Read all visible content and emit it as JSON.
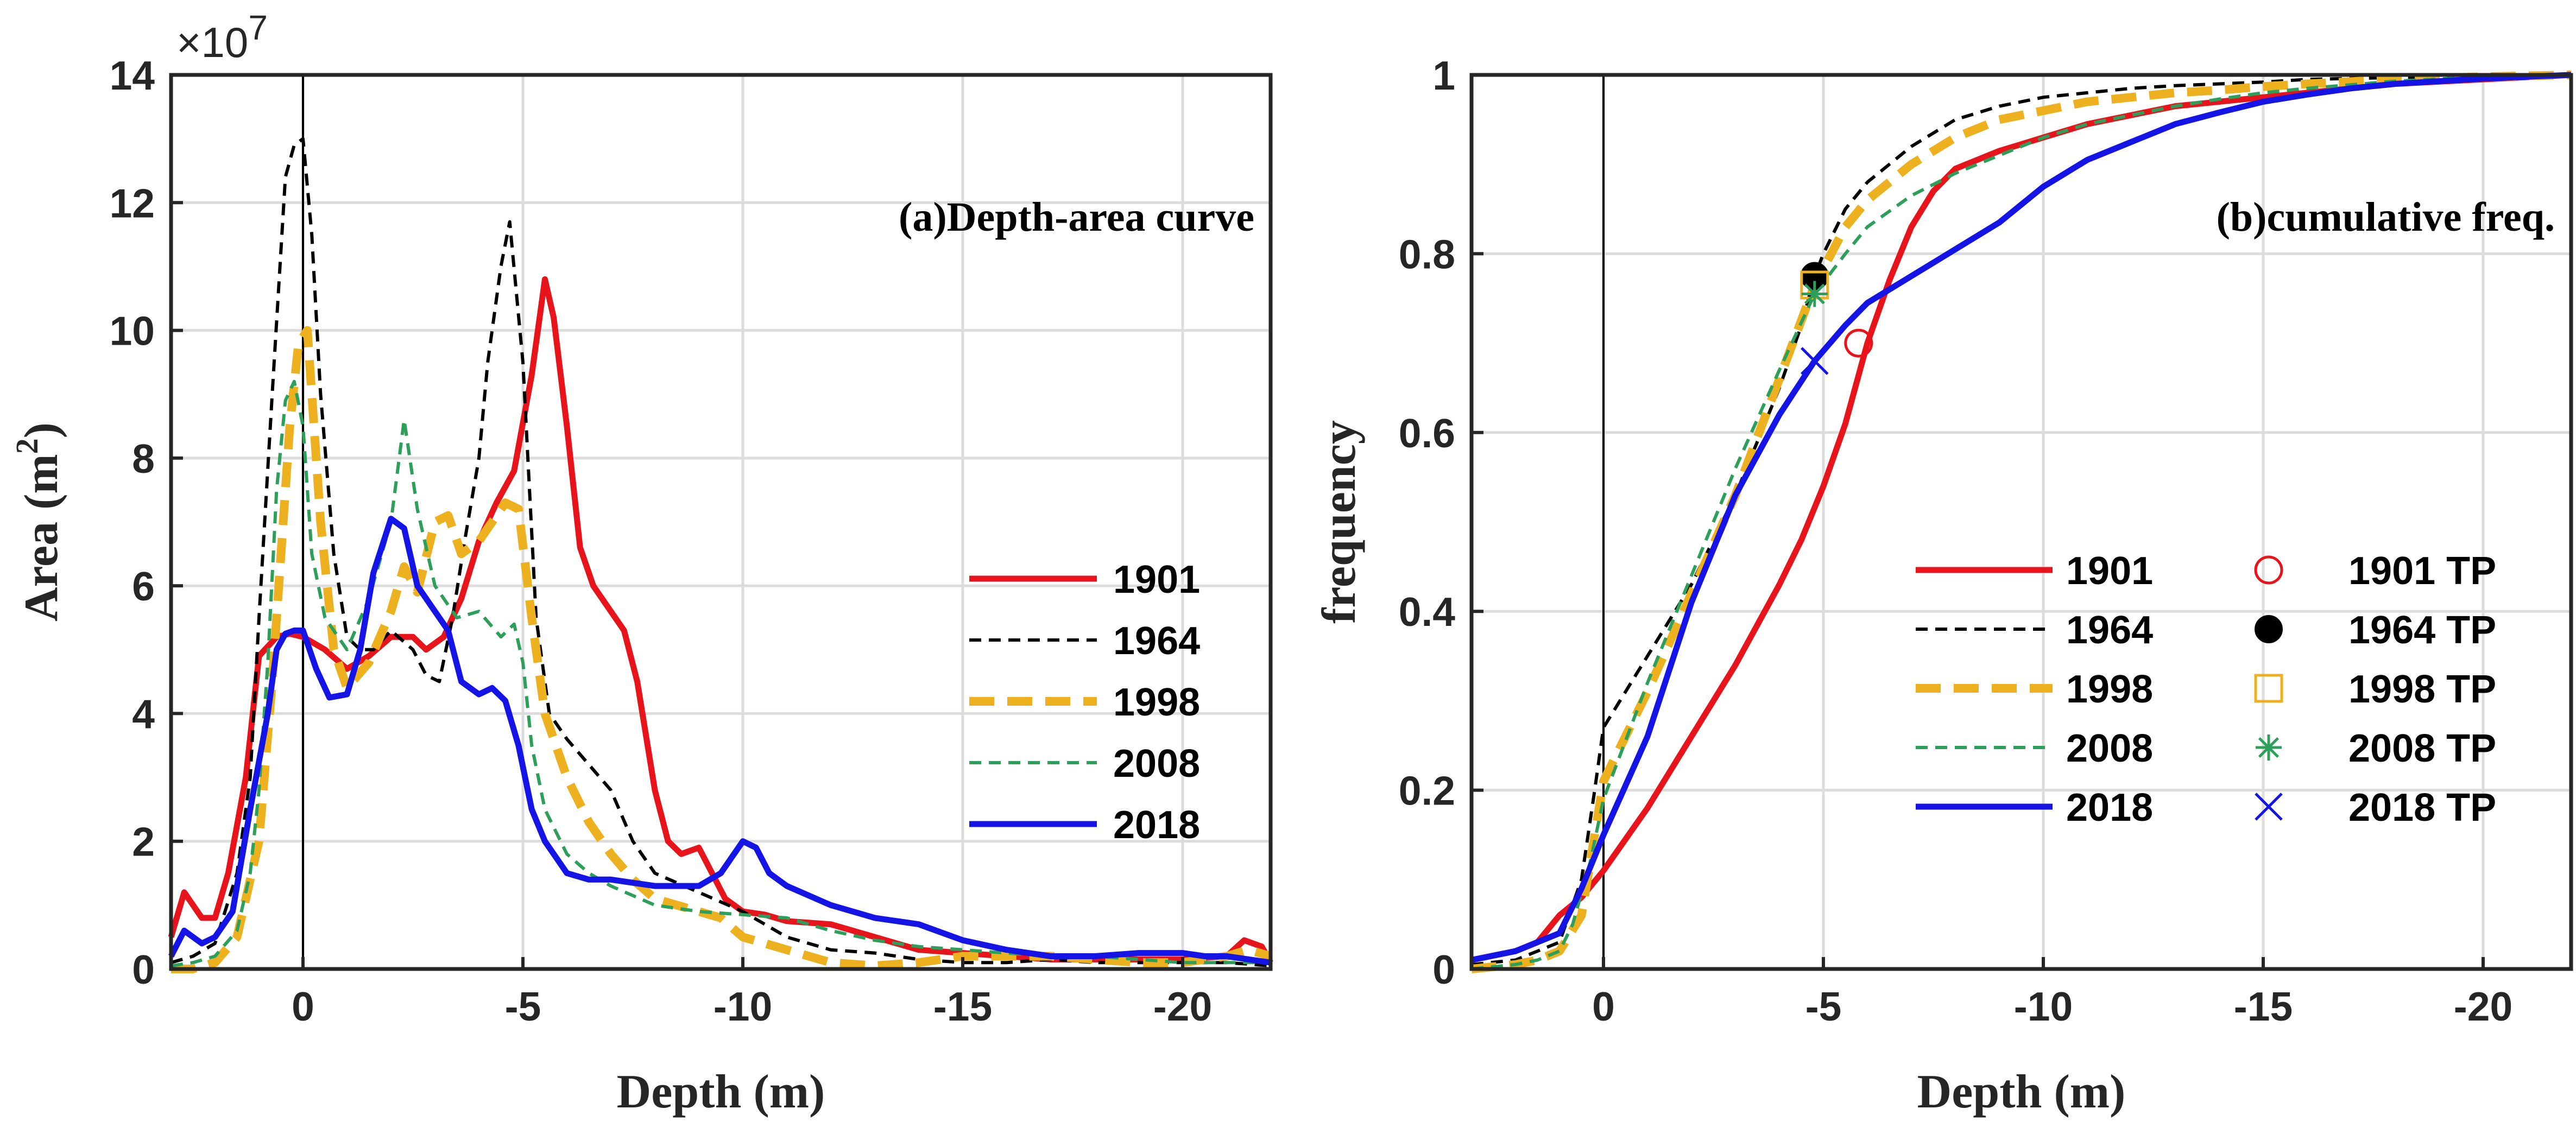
{
  "chart_data": [
    {
      "type": "line",
      "title": "(a)Depth-area curve",
      "xlabel": "Depth (m)",
      "ylabel": "Area (m",
      "ylabel_sup": "2",
      "ylabel_close": ")",
      "exponent_label": "×10",
      "exponent_power": "7",
      "xlim": [
        3,
        -22
      ],
      "ylim": [
        0,
        14
      ],
      "x_ticks": [
        0,
        -5,
        -10,
        -15,
        -20
      ],
      "x_tick_labels": [
        "0",
        "-5",
        "-10",
        "-15",
        "-20"
      ],
      "y_ticks": [
        0,
        2,
        4,
        6,
        8,
        10,
        12,
        14
      ],
      "y_tick_labels": [
        "0",
        "2",
        "4",
        "6",
        "8",
        "10",
        "12",
        "14"
      ],
      "grid": true,
      "legend_position": "center-right",
      "series": [
        {
          "name": "1901",
          "color": "#e8141c",
          "style": "solid",
          "x": [
            3,
            2.7,
            2.3,
            2,
            1.7,
            1.3,
            1,
            0.6,
            0.3,
            0,
            -0.5,
            -1,
            -1.5,
            -2,
            -2.5,
            -2.8,
            -3.2,
            -3.6,
            -4,
            -4.4,
            -4.8,
            -5.2,
            -5.5,
            -5.7,
            -6,
            -6.3,
            -6.6,
            -7,
            -7.3,
            -7.6,
            -8,
            -8.3,
            -8.6,
            -9,
            -9.3,
            -9.6,
            -10,
            -10.5,
            -11,
            -12,
            -13,
            -14,
            -15,
            -16,
            -17,
            -18,
            -19,
            -20,
            -21,
            -21.4,
            -21.8,
            -22
          ],
          "y": [
            0.5,
            1.2,
            0.8,
            0.8,
            1.5,
            3,
            4.9,
            5.2,
            5.25,
            5.2,
            5.0,
            4.7,
            4.9,
            5.2,
            5.2,
            5.0,
            5.2,
            5.8,
            6.7,
            7.3,
            7.8,
            9.3,
            10.8,
            10.2,
            8.5,
            6.6,
            6.0,
            5.6,
            5.3,
            4.5,
            2.8,
            2.0,
            1.8,
            1.9,
            1.5,
            1.1,
            0.9,
            0.85,
            0.75,
            0.7,
            0.5,
            0.3,
            0.25,
            0.2,
            0.15,
            0.15,
            0.15,
            0.15,
            0.2,
            0.45,
            0.35,
            0.1
          ]
        },
        {
          "name": "1964",
          "color": "#000000",
          "style": "dashed",
          "x": [
            3,
            2.5,
            2,
            1.5,
            1.2,
            1,
            0.7,
            0.4,
            0.2,
            0,
            -0.2,
            -0.4,
            -0.7,
            -1,
            -1.3,
            -1.6,
            -2,
            -2.5,
            -2.8,
            -3.1,
            -3.4,
            -3.7,
            -4,
            -4.2,
            -4.5,
            -4.7,
            -5,
            -5.3,
            -5.6,
            -6,
            -6.5,
            -7,
            -7.5,
            -8,
            -9,
            -10,
            -11,
            -12,
            -13,
            -14,
            -15,
            -16,
            -17,
            -18,
            -19,
            -20,
            -21,
            -22
          ],
          "y": [
            0.1,
            0.2,
            0.4,
            1.5,
            3,
            5.5,
            9,
            12.4,
            12.9,
            13.0,
            11.5,
            9,
            6.5,
            5.2,
            5.0,
            5.0,
            5.3,
            5.0,
            4.6,
            4.5,
            5.5,
            6.8,
            8.0,
            9.5,
            11.0,
            11.7,
            9.5,
            5.5,
            4.0,
            3.6,
            3.2,
            2.8,
            2.0,
            1.5,
            1.2,
            0.9,
            0.5,
            0.3,
            0.25,
            0.15,
            0.1,
            0.1,
            0.15,
            0.1,
            0.1,
            0.1,
            0.1,
            0.05
          ]
        },
        {
          "name": "1998",
          "color": "#edb120",
          "style": "dashed-thick",
          "x": [
            3,
            2.5,
            2,
            1.5,
            1,
            0.7,
            0.5,
            0.3,
            0.1,
            -0.1,
            -0.4,
            -0.7,
            -1,
            -1.5,
            -2,
            -2.3,
            -2.6,
            -3,
            -3.3,
            -3.6,
            -4,
            -4.3,
            -4.6,
            -4.9,
            -5.2,
            -5.5,
            -6,
            -6.5,
            -7,
            -7.5,
            -8,
            -8.5,
            -9,
            -9.5,
            -10,
            -10.5,
            -11,
            -12,
            -13,
            -14,
            -15,
            -16,
            -17,
            -18,
            -19,
            -20,
            -21,
            -21.5,
            -22
          ],
          "y": [
            0,
            0,
            0.1,
            0.5,
            2,
            4.5,
            6.5,
            8.5,
            9.8,
            10.0,
            7,
            5,
            4.4,
            4.8,
            5.6,
            6.3,
            5.9,
            7.0,
            7.1,
            6.5,
            6.7,
            7.0,
            7.3,
            7.2,
            5.5,
            4.0,
            3.0,
            2.3,
            1.8,
            1.4,
            1.1,
            1.0,
            0.9,
            0.8,
            0.5,
            0.4,
            0.3,
            0.1,
            0.05,
            0.1,
            0.2,
            0.2,
            0.2,
            0.15,
            0.1,
            0.1,
            0.2,
            0.3,
            0.2
          ]
        },
        {
          "name": "2008",
          "color": "#2ca05a",
          "style": "dashed",
          "x": [
            3,
            2.5,
            2,
            1.5,
            1.2,
            1,
            0.8,
            0.6,
            0.4,
            0.2,
            0,
            -0.2,
            -0.5,
            -1,
            -1.5,
            -2,
            -2.3,
            -2.6,
            -3,
            -3.5,
            -4,
            -4.5,
            -4.8,
            -5,
            -5.2,
            -5.5,
            -6,
            -6.5,
            -7,
            -8,
            -9,
            -10,
            -11,
            -12,
            -13,
            -14,
            -15,
            -16,
            -17,
            -18,
            -19,
            -20,
            -21,
            -22
          ],
          "y": [
            0.05,
            0.1,
            0.2,
            0.6,
            1.5,
            2.8,
            4.8,
            7.5,
            8.9,
            9.2,
            8.5,
            6.5,
            5.5,
            5.0,
            5.8,
            7.0,
            8.6,
            7.2,
            6.0,
            5.5,
            5.6,
            5.2,
            5.4,
            4.8,
            3.5,
            2.5,
            1.8,
            1.5,
            1.3,
            1.0,
            0.9,
            0.85,
            0.8,
            0.6,
            0.45,
            0.35,
            0.3,
            0.25,
            0.2,
            0.2,
            0.15,
            0.1,
            0.1,
            0.1
          ]
        },
        {
          "name": "2018",
          "color": "#1414e6",
          "style": "solid",
          "x": [
            3,
            2.7,
            2.3,
            2,
            1.6,
            1.2,
            0.8,
            0.6,
            0.4,
            0.2,
            0,
            -0.3,
            -0.6,
            -1,
            -1.3,
            -1.6,
            -2,
            -2.3,
            -2.6,
            -3,
            -3.3,
            -3.6,
            -4,
            -4.3,
            -4.6,
            -4.9,
            -5.2,
            -5.5,
            -6,
            -6.5,
            -7,
            -8,
            -9,
            -9.5,
            -10,
            -10.3,
            -10.6,
            -11,
            -12,
            -13,
            -14,
            -15,
            -16,
            -17,
            -18,
            -19,
            -20,
            -20.5,
            -21,
            -22
          ],
          "y": [
            0.2,
            0.6,
            0.4,
            0.5,
            0.9,
            2.5,
            4.0,
            5.0,
            5.25,
            5.3,
            5.3,
            4.7,
            4.25,
            4.3,
            5.0,
            6.2,
            7.05,
            6.9,
            6.0,
            5.6,
            5.3,
            4.5,
            4.3,
            4.4,
            4.2,
            3.5,
            2.5,
            2.0,
            1.5,
            1.4,
            1.4,
            1.3,
            1.3,
            1.5,
            2.0,
            1.9,
            1.5,
            1.3,
            1.0,
            0.8,
            0.7,
            0.45,
            0.3,
            0.2,
            0.2,
            0.25,
            0.25,
            0.2,
            0.2,
            0.1
          ]
        }
      ]
    },
    {
      "type": "line",
      "title": "(b)cumulative freq.",
      "xlabel": "Depth (m)",
      "ylabel": "frequency",
      "xlim": [
        3,
        -22
      ],
      "ylim": [
        0,
        1
      ],
      "x_ticks": [
        0,
        -5,
        -10,
        -15,
        -20
      ],
      "x_tick_labels": [
        "0",
        "-5",
        "-10",
        "-15",
        "-20"
      ],
      "y_ticks": [
        0,
        0.2,
        0.4,
        0.6,
        0.8,
        1
      ],
      "y_tick_labels": [
        "0",
        "0.2",
        "0.4",
        "0.6",
        "0.8",
        "1"
      ],
      "grid": true,
      "legend_position": "lower-right",
      "series": [
        {
          "name": "1901",
          "color": "#e8141c",
          "style": "solid",
          "x": [
            3,
            2,
            1.5,
            1,
            0.5,
            0,
            -1,
            -2,
            -3,
            -4,
            -4.5,
            -5,
            -5.5,
            -6,
            -6.5,
            -7,
            -7.5,
            -8,
            -9,
            -10,
            -11,
            -12,
            -13,
            -14,
            -15,
            -16,
            -17,
            -18,
            -20,
            -22
          ],
          "y": [
            0.01,
            0.02,
            0.03,
            0.06,
            0.08,
            0.11,
            0.18,
            0.26,
            0.34,
            0.43,
            0.48,
            0.54,
            0.61,
            0.7,
            0.77,
            0.83,
            0.87,
            0.895,
            0.915,
            0.93,
            0.945,
            0.955,
            0.965,
            0.97,
            0.975,
            0.98,
            0.985,
            0.99,
            0.995,
            1.0
          ]
        },
        {
          "name": "1964",
          "color": "#000000",
          "style": "dashed",
          "x": [
            3,
            2,
            1.5,
            1,
            0.5,
            0.2,
            0,
            -0.5,
            -1,
            -2,
            -3,
            -4,
            -4.5,
            -4.8,
            -5,
            -5.5,
            -6,
            -7,
            -8,
            -9,
            -10,
            -11,
            -12,
            -13,
            -14,
            -15,
            -16,
            -18,
            -20,
            -22
          ],
          "y": [
            0.005,
            0.01,
            0.02,
            0.03,
            0.1,
            0.2,
            0.27,
            0.31,
            0.35,
            0.43,
            0.53,
            0.65,
            0.72,
            0.775,
            0.8,
            0.85,
            0.88,
            0.92,
            0.95,
            0.965,
            0.975,
            0.98,
            0.985,
            0.988,
            0.99,
            0.992,
            0.995,
            0.997,
            0.999,
            1.0
          ]
        },
        {
          "name": "1998",
          "color": "#edb120",
          "style": "dashed-thick",
          "x": [
            3,
            2,
            1.5,
            1,
            0.5,
            0,
            -1,
            -2,
            -3,
            -4,
            -4.8,
            -5.5,
            -6,
            -7,
            -8,
            -9,
            -10,
            -11,
            -12,
            -13,
            -14,
            -15,
            -16,
            -18,
            -20,
            -22
          ],
          "y": [
            0.0,
            0.005,
            0.01,
            0.02,
            0.06,
            0.21,
            0.31,
            0.42,
            0.53,
            0.66,
            0.765,
            0.83,
            0.86,
            0.9,
            0.93,
            0.95,
            0.96,
            0.97,
            0.975,
            0.98,
            0.983,
            0.987,
            0.99,
            0.995,
            0.998,
            1.0
          ]
        },
        {
          "name": "2008",
          "color": "#2ca05a",
          "style": "dashed",
          "x": [
            3,
            2,
            1.5,
            1,
            0.7,
            0.3,
            0,
            -1,
            -2,
            -3,
            -4,
            -4.8,
            -5.5,
            -6,
            -7,
            -8,
            -9,
            -10,
            -11,
            -12,
            -13,
            -14,
            -15,
            -16,
            -18,
            -20,
            -22
          ],
          "y": [
            0.0,
            0.005,
            0.01,
            0.02,
            0.05,
            0.12,
            0.19,
            0.32,
            0.44,
            0.56,
            0.67,
            0.755,
            0.8,
            0.83,
            0.865,
            0.89,
            0.91,
            0.93,
            0.945,
            0.955,
            0.965,
            0.973,
            0.98,
            0.985,
            0.993,
            0.998,
            1.0
          ]
        },
        {
          "name": "2018",
          "color": "#1414e6",
          "style": "solid",
          "x": [
            3,
            2,
            1.5,
            1,
            0.5,
            0,
            -1,
            -2,
            -3,
            -4,
            -4.8,
            -5.5,
            -6,
            -7,
            -8,
            -9,
            -10,
            -11,
            -12,
            -13,
            -14,
            -15,
            -16,
            -17,
            -18,
            -20,
            -22
          ],
          "y": [
            0.01,
            0.02,
            0.03,
            0.04,
            0.09,
            0.15,
            0.26,
            0.41,
            0.53,
            0.62,
            0.68,
            0.72,
            0.745,
            0.775,
            0.805,
            0.835,
            0.875,
            0.905,
            0.925,
            0.945,
            0.958,
            0.97,
            0.978,
            0.985,
            0.99,
            0.996,
            1.0
          ]
        }
      ],
      "turning_points": [
        {
          "name": "1901 TP",
          "x": -5.8,
          "y": 0.7,
          "marker": "circle-open",
          "color": "#e8141c"
        },
        {
          "name": "1964 TP",
          "x": -4.8,
          "y": 0.775,
          "marker": "circle-filled",
          "color": "#000000"
        },
        {
          "name": "1998 TP",
          "x": -4.8,
          "y": 0.765,
          "marker": "square-open",
          "color": "#edb120"
        },
        {
          "name": "2008 TP",
          "x": -4.8,
          "y": 0.755,
          "marker": "asterisk",
          "color": "#2ca05a"
        },
        {
          "name": "2018 TP",
          "x": -4.8,
          "y": 0.68,
          "marker": "cross",
          "color": "#1414e6"
        }
      ]
    }
  ]
}
